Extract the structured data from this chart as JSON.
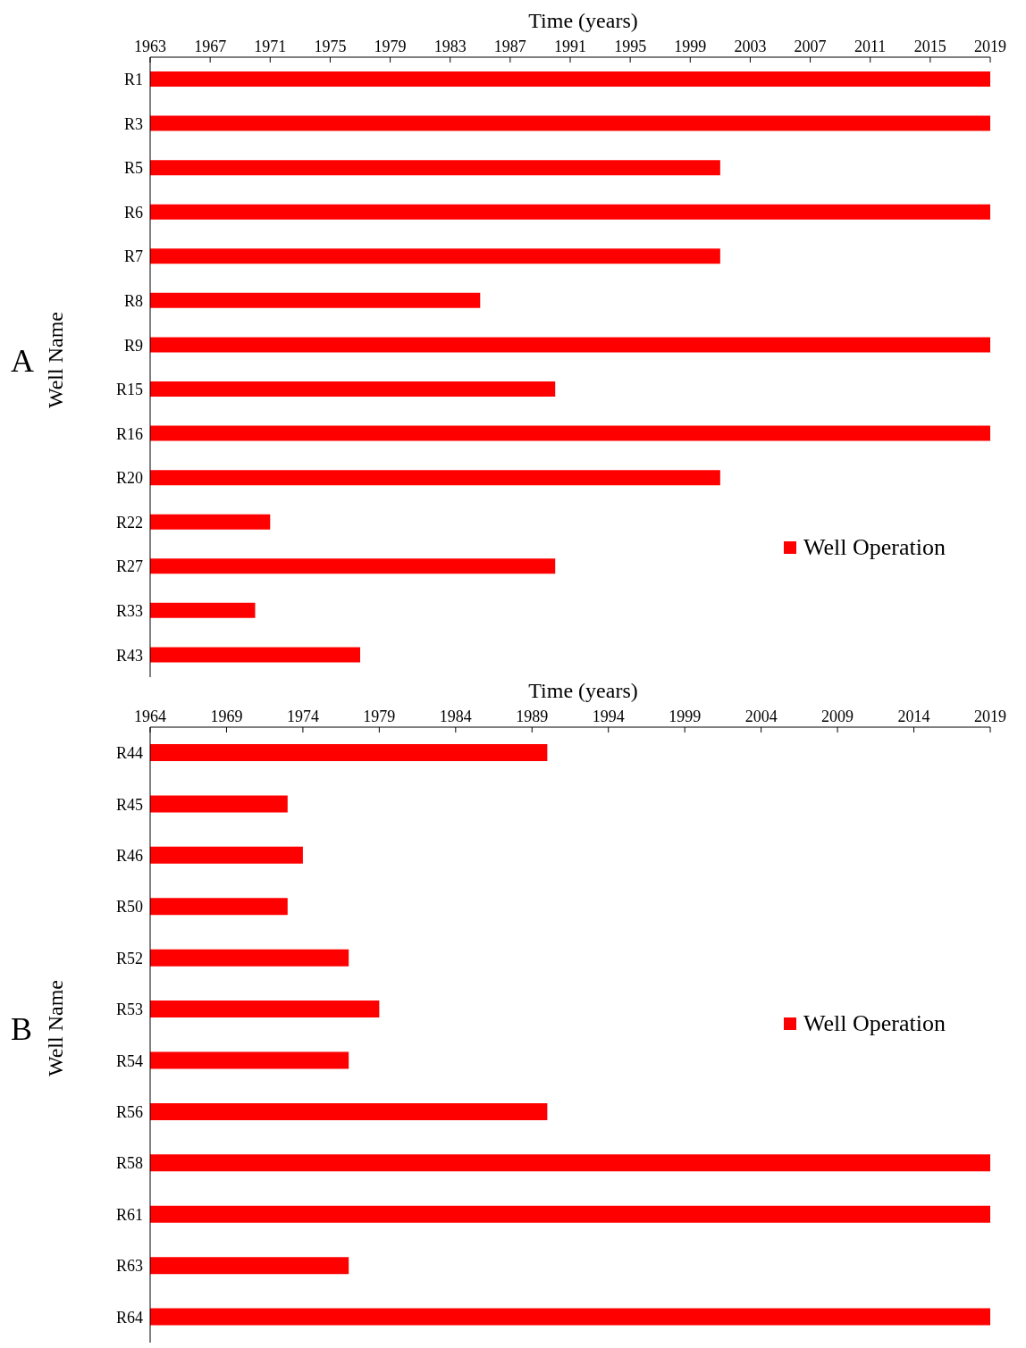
{
  "chart_data": [
    {
      "type": "bar",
      "orientation": "horizontal",
      "xlabel": "Time (years)",
      "ylabel": "Well Name",
      "annotations": [
        "A"
      ],
      "categories": [
        "R1",
        "R3",
        "R5",
        "R6",
        "R7",
        "R8",
        "R9",
        "R15",
        "R16",
        "R20",
        "R22",
        "R27",
        "R33",
        "R43"
      ],
      "series": [
        {
          "name": "Well Operation",
          "color": "#ff0000",
          "values": [
            2019,
            2019,
            2001,
            2019,
            2001,
            1985,
            2019,
            1990,
            2019,
            2001,
            1971,
            1990,
            1970,
            1977
          ]
        }
      ],
      "xlim": [
        1963,
        2019
      ],
      "xticks": [
        1963,
        1967,
        1971,
        1975,
        1979,
        1983,
        1987,
        1991,
        1995,
        1999,
        2003,
        2007,
        2011,
        2015,
        2019
      ],
      "grid": false,
      "legend": "bottom right"
    },
    {
      "type": "bar",
      "orientation": "horizontal",
      "xlabel": "Time (years)",
      "ylabel": "Well Name",
      "annotations": [
        "B"
      ],
      "categories": [
        "R44",
        "R45",
        "R46",
        "R50",
        "R52",
        "R53",
        "R54",
        "R56",
        "R58",
        "R61",
        "R63",
        "R64"
      ],
      "series": [
        {
          "name": "Well Operation",
          "color": "#ff0000",
          "values": [
            1990,
            1973,
            1974,
            1973,
            1977,
            1979,
            1977,
            1990,
            2019,
            2019,
            1977,
            2019
          ]
        }
      ],
      "xlim": [
        1964,
        2019
      ],
      "xticks": [
        1964,
        1969,
        1974,
        1979,
        1984,
        1989,
        1994,
        1999,
        2004,
        2009,
        2014,
        2019
      ],
      "grid": false,
      "legend": "right"
    }
  ]
}
